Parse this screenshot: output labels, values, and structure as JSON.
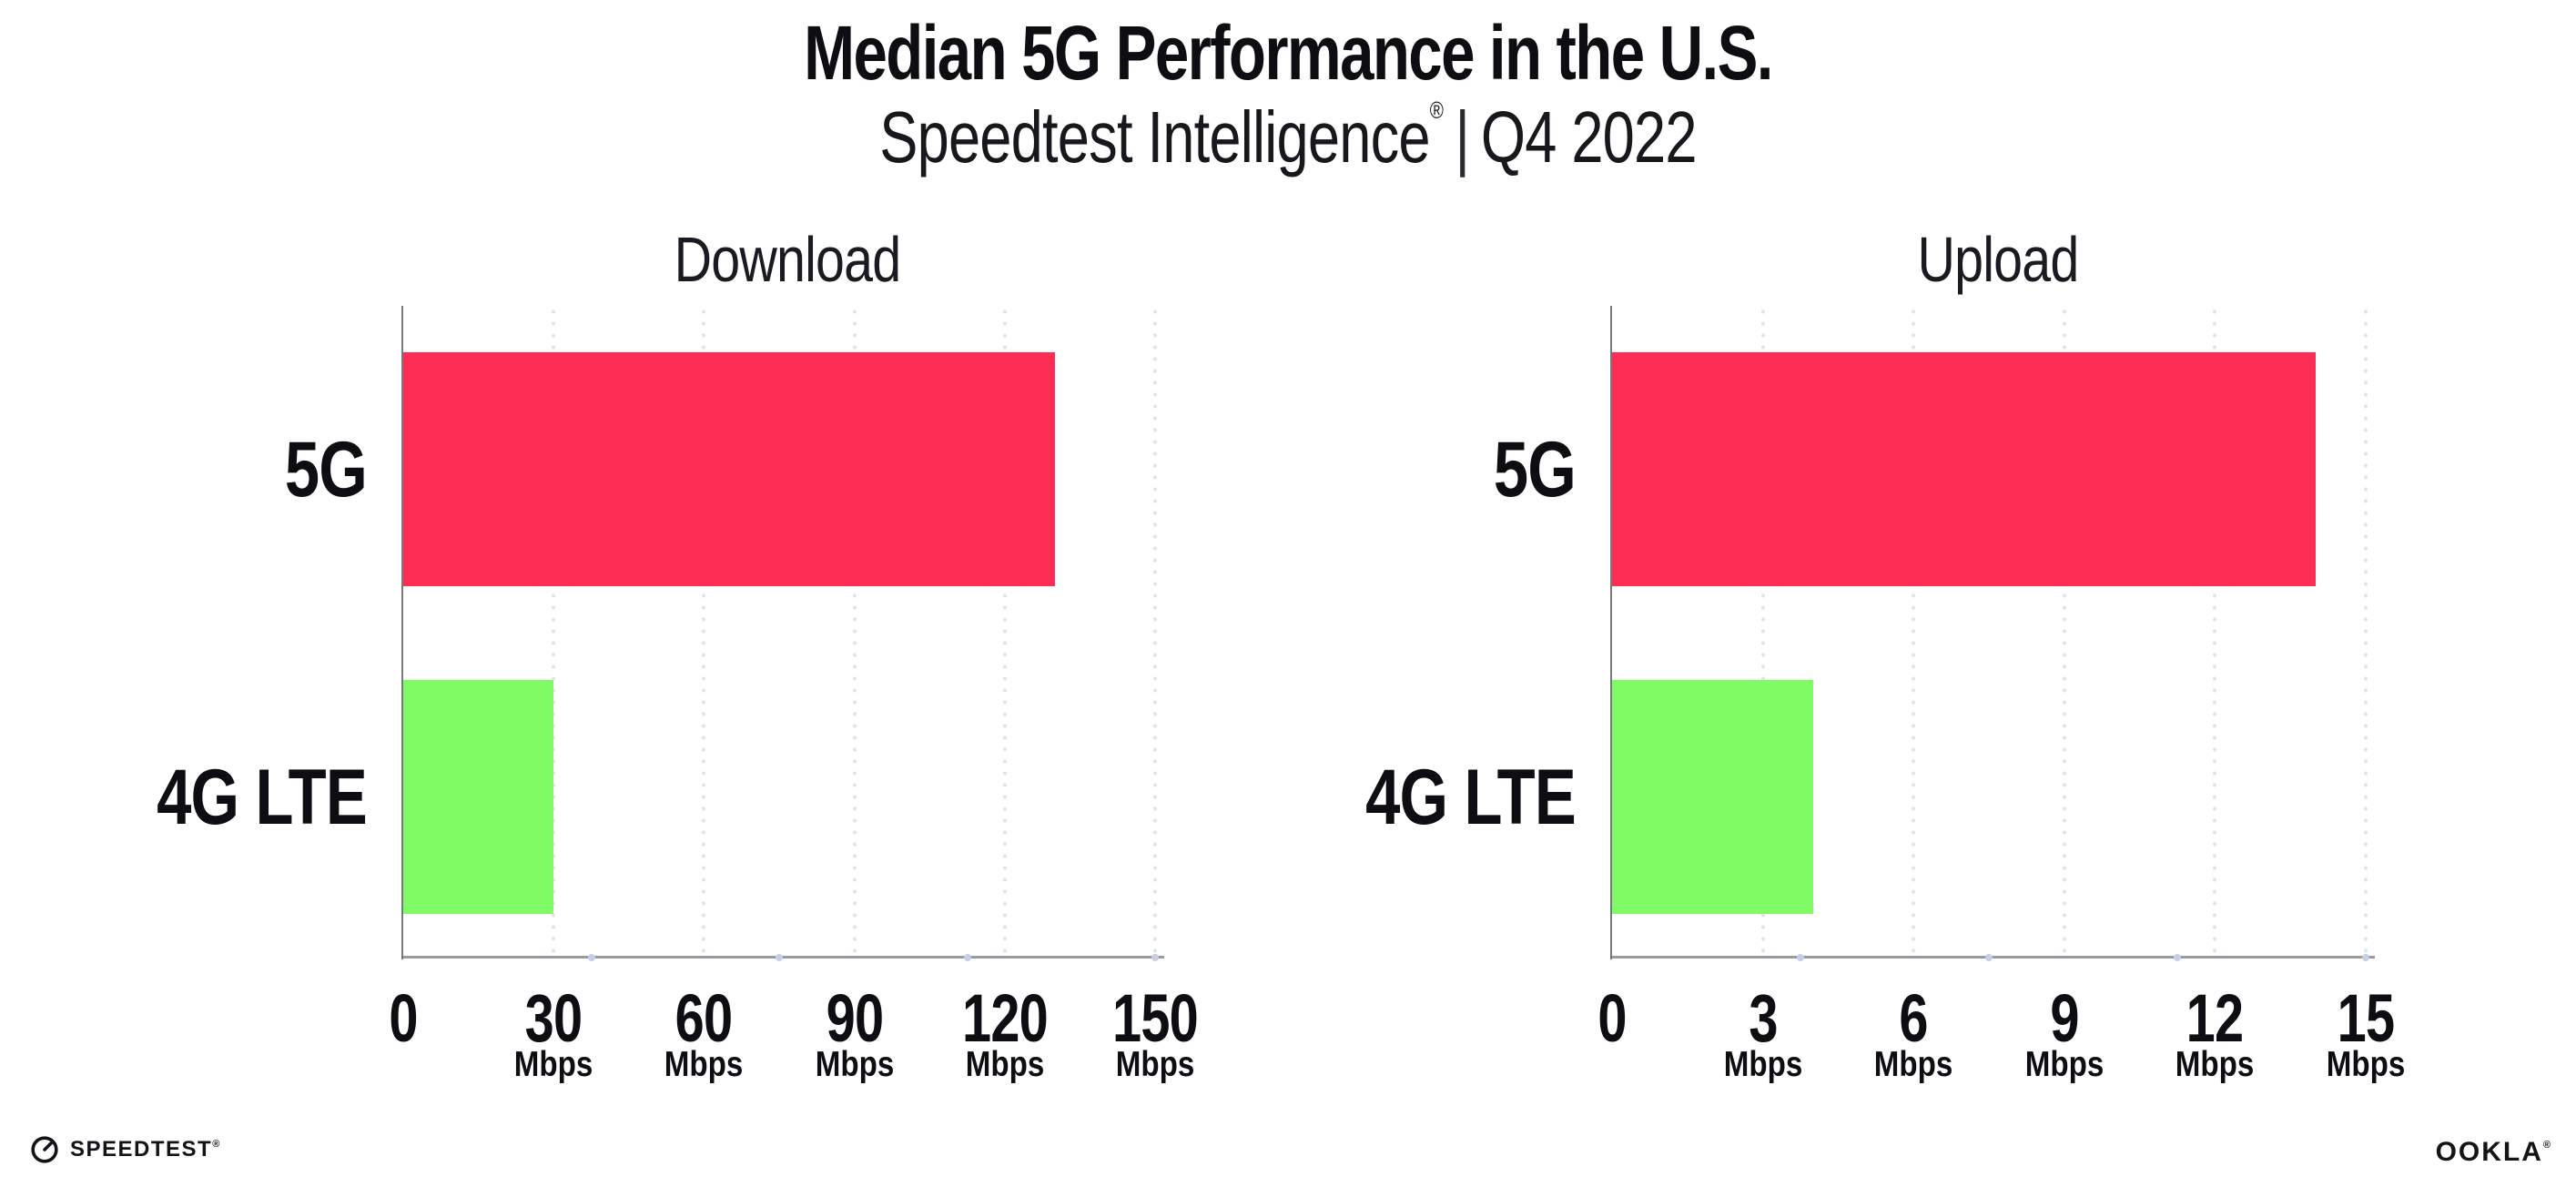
{
  "header": {
    "title": "Median 5G Performance in the U.S.",
    "subtitle": {
      "brand": "Speedtest Intelligence",
      "registered": "®",
      "divider": "|",
      "period": "Q4 2022"
    }
  },
  "chart_data": [
    {
      "type": "bar",
      "orientation": "horizontal",
      "title": "Download",
      "categories": [
        "5G",
        "4G LTE"
      ],
      "values": [
        130,
        30
      ],
      "unit": "Mbps",
      "xlim": [
        0,
        150
      ],
      "xticks": [
        0,
        30,
        60,
        90,
        120,
        150
      ],
      "grid": "dotted-vertical",
      "legend": "none",
      "bar_colors": [
        "#fd2d55",
        "#7ffc64"
      ]
    },
    {
      "type": "bar",
      "orientation": "horizontal",
      "title": "Upload",
      "categories": [
        "5G",
        "4G LTE"
      ],
      "values": [
        14,
        4
      ],
      "unit": "Mbps",
      "xlim": [
        0,
        15
      ],
      "xticks": [
        0,
        3,
        6,
        9,
        12,
        15
      ],
      "grid": "dotted-vertical",
      "legend": "none",
      "bar_colors": [
        "#fd2d55",
        "#7ffc64"
      ]
    }
  ],
  "colors": {
    "bar_5g_pink": "#fd2d55",
    "bar_4g_green": "#7ffc64",
    "axis_horizontal": "#9a9aa0",
    "axis_vertical": "#77777e",
    "grid_dot": "#dfe2ef",
    "quarter_tick_dot": "#c8cee6",
    "text": "#0e0e12",
    "background": "#ffffff"
  },
  "footer": {
    "speedtest_label": "SPEEDTEST",
    "speedtest_registered": "®",
    "speedtest_icon": "gauge-icon",
    "ookla_label": "OOKLA",
    "ookla_registered": "®"
  }
}
